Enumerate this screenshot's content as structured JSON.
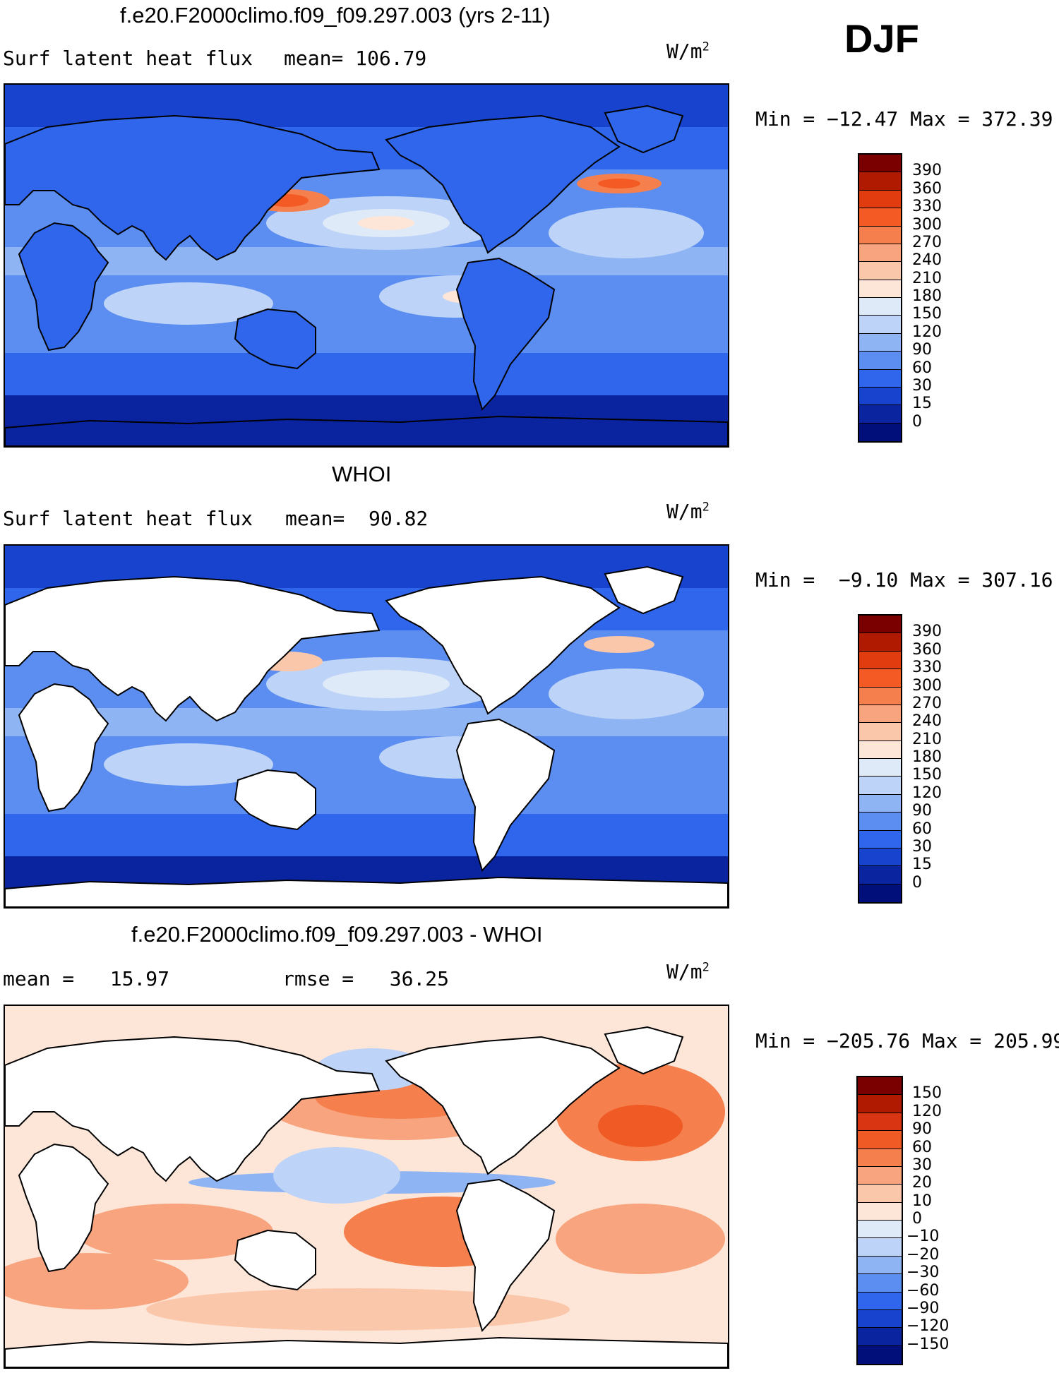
{
  "season": "DJF",
  "units": "W/m",
  "units_exp": "2",
  "panels": [
    {
      "title": "f.e20.F2000climo.f09_f09.297.003 (yrs 2-11)",
      "left_label": "Surf latent heat flux",
      "mid_label": "mean= 106.79",
      "minmax": "Min = −12.47 Max = 372.39",
      "land": "filled",
      "colorbar_labels": [
        "390",
        "360",
        "330",
        "300",
        "270",
        "240",
        "210",
        "180",
        "150",
        "120",
        "90",
        "60",
        "30",
        "15",
        "0"
      ]
    },
    {
      "title": "WHOI",
      "left_label": "Surf latent heat flux",
      "mid_label": "mean=  90.82",
      "minmax": "Min =  −9.10 Max = 307.16",
      "land": "blank",
      "colorbar_labels": [
        "390",
        "360",
        "330",
        "300",
        "270",
        "240",
        "210",
        "180",
        "150",
        "120",
        "90",
        "60",
        "30",
        "15",
        "0"
      ]
    },
    {
      "title": "f.e20.F2000climo.f09_f09.297.003 - WHOI",
      "left_label": "mean =   15.97",
      "mid_label": "rmse =   36.25",
      "minmax": "Min = −205.76 Max = 205.99",
      "land": "blank",
      "colorbar_labels": [
        "150",
        "120",
        "90",
        "60",
        "30",
        "20",
        "10",
        "0",
        "−10",
        "−20",
        "−30",
        "−60",
        "−90",
        "−120",
        "−150"
      ]
    }
  ],
  "colors": {
    "flux_scale": [
      "#7a0000",
      "#b01a00",
      "#e03c10",
      "#f45a23",
      "#f5804e",
      "#f8a47e",
      "#fbc7aa",
      "#fde6d8",
      "#dfeaf8",
      "#bdd3f7",
      "#8fb4f3",
      "#5b8ef0",
      "#2f66ec",
      "#1743cf",
      "#0a24a0",
      "#000f7a"
    ],
    "diff_scale": [
      "#7a0000",
      "#b01a00",
      "#d93512",
      "#f05a25",
      "#f5804e",
      "#f8a47e",
      "#fbc7aa",
      "#fde6d8",
      "#dfeaf8",
      "#bdd3f7",
      "#8fb4f3",
      "#5b8ef0",
      "#2f66ec",
      "#1743cf",
      "#0a24a0",
      "#000f7a"
    ]
  }
}
